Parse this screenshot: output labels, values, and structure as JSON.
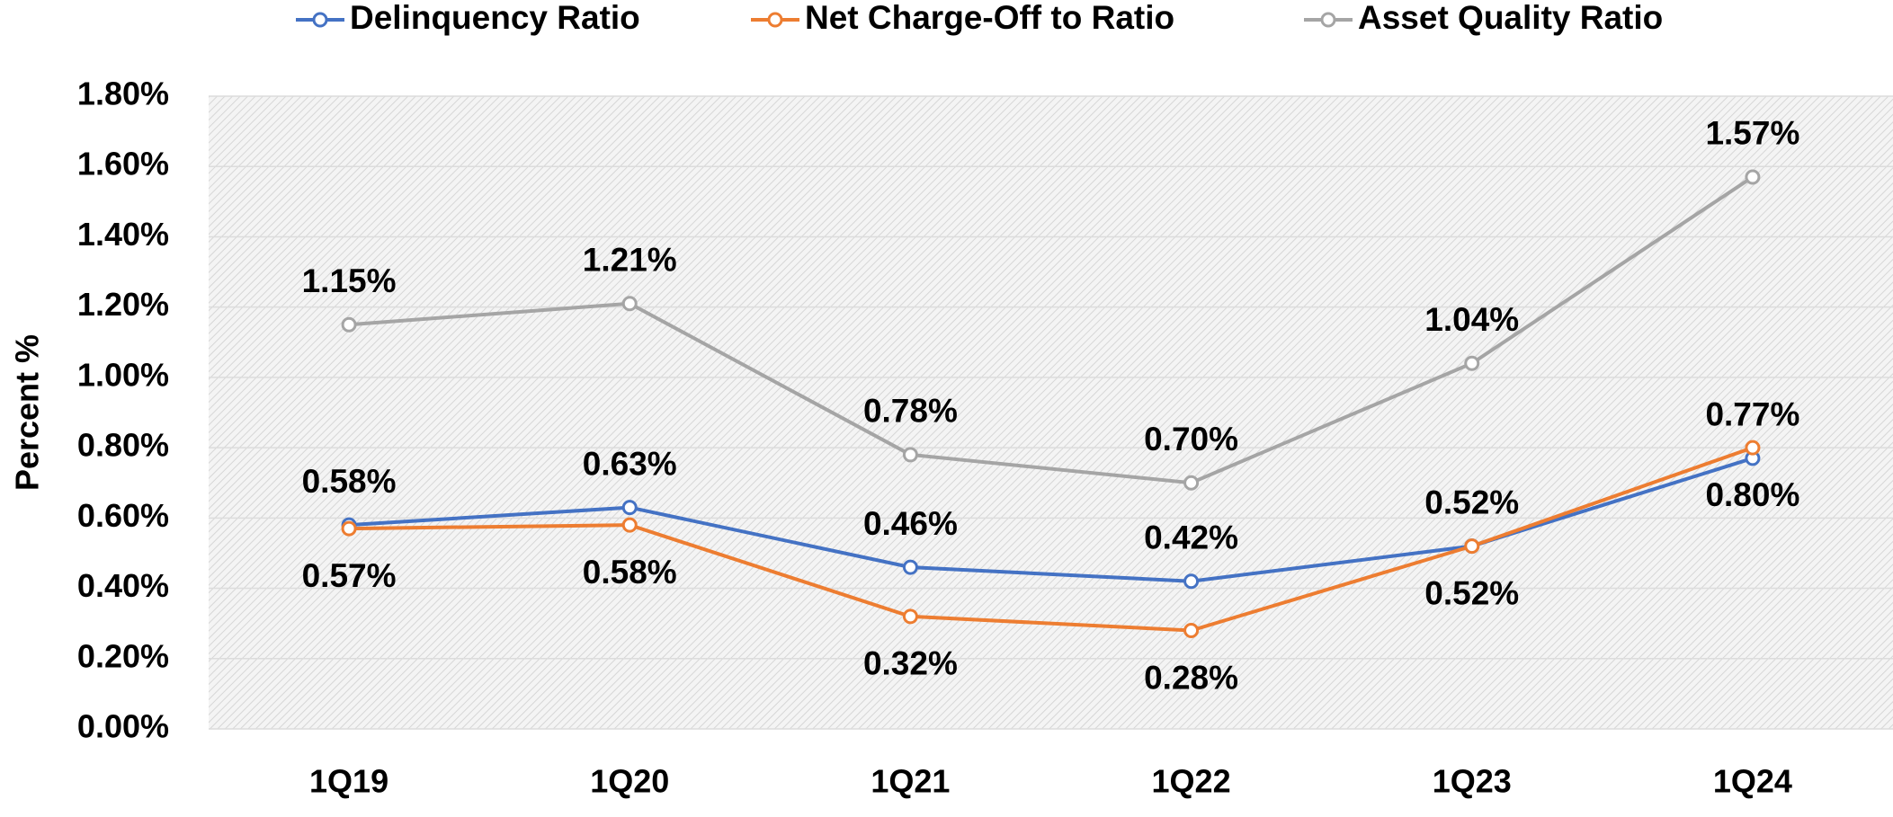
{
  "chart_data": {
    "type": "line",
    "y_label": "Percent %",
    "categories": [
      "1Q19",
      "1Q20",
      "1Q21",
      "1Q22",
      "1Q23",
      "1Q24"
    ],
    "series": [
      {
        "name": "Delinquency Ratio",
        "color": "#4472c4",
        "values": [
          0.58,
          0.63,
          0.46,
          0.42,
          0.52,
          0.77
        ],
        "value_labels": [
          "0.58%",
          "0.63%",
          "0.46%",
          "0.42%",
          "0.52%",
          "0.77%"
        ]
      },
      {
        "name": "Net Charge-Off to Ratio",
        "color": "#ed7d31",
        "values": [
          0.57,
          0.58,
          0.32,
          0.28,
          0.52,
          0.8
        ],
        "value_labels": [
          "0.57%",
          "0.58%",
          "0.32%",
          "0.28%",
          "0.52%",
          "0.80%"
        ]
      },
      {
        "name": "Asset Quality Ratio",
        "color": "#a5a5a5",
        "values": [
          1.15,
          1.21,
          0.78,
          0.7,
          1.04,
          1.57
        ],
        "value_labels": [
          "1.15%",
          "1.21%",
          "0.78%",
          "0.70%",
          "1.04%",
          "1.57%"
        ]
      }
    ],
    "ylim": [
      0,
      1.8
    ],
    "yticks": [
      {
        "value": 0,
        "label": "0.00%"
      },
      {
        "value": 0.2,
        "label": "0.20%"
      },
      {
        "value": 0.4,
        "label": "0.40%"
      },
      {
        "value": 0.6,
        "label": "0.60%"
      },
      {
        "value": 0.8,
        "label": "0.80%"
      },
      {
        "value": 1.0,
        "label": "1.00%"
      },
      {
        "value": 1.2,
        "label": "1.20%"
      },
      {
        "value": 1.4,
        "label": "1.40%"
      },
      {
        "value": 1.6,
        "label": "1.60%"
      },
      {
        "value": 1.8,
        "label": "1.80%"
      }
    ],
    "grid": true,
    "legend": "top"
  }
}
